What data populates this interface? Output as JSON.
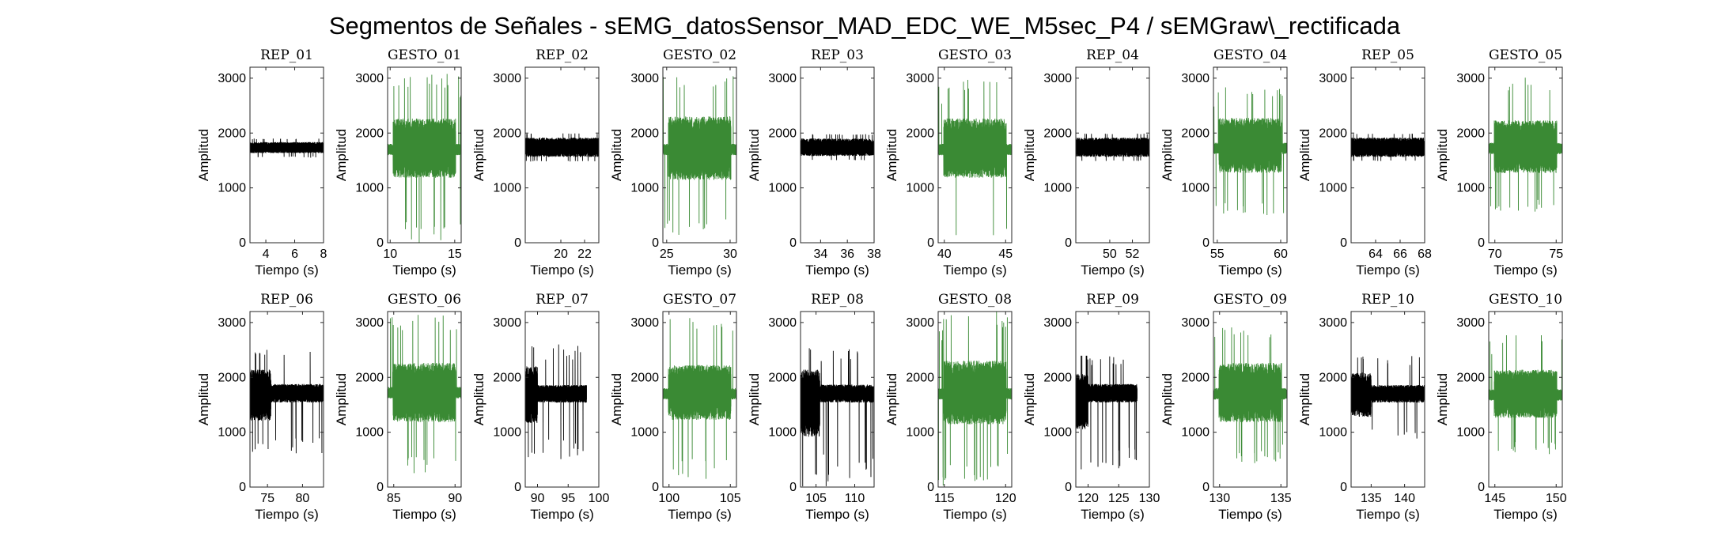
{
  "figure_title": "Segmentos de Señales - sEMG_datosSensor_MAD_EDC_WE_M5sec_P4 / sEMGraw\\_rectificada",
  "colors": {
    "rep": "#000000",
    "gesto": "#3a8a34"
  },
  "chart_data": [
    {
      "type": "line",
      "title": "REP_01",
      "category": "rep",
      "xlim": [
        2.9,
        8
      ],
      "xticks": [
        4,
        6,
        8
      ],
      "ylim": [
        0,
        3200
      ],
      "yticks": [
        0,
        1000,
        2000,
        3000
      ],
      "xlabel": "Tiempo (s)",
      "ylabel": "Amplitud",
      "signal": {
        "center": 1730,
        "band": [
          1610,
          1860
        ],
        "spikes": [
          1550,
          1900
        ]
      }
    },
    {
      "type": "line",
      "title": "GESTO_01",
      "category": "gesto",
      "xlim": [
        9.8,
        15.5
      ],
      "xticks": [
        10,
        15
      ],
      "ylim": [
        0,
        3200
      ],
      "yticks": [
        0,
        1000,
        2000,
        3000
      ],
      "xlabel": "Tiempo (s)",
      "ylabel": "Amplitud",
      "signal": {
        "center": 1700,
        "band": [
          1050,
          2400
        ],
        "spikes": [
          0,
          3100
        ]
      }
    },
    {
      "type": "line",
      "title": "REP_02",
      "category": "rep",
      "xlim": [
        17,
        23.2
      ],
      "xticks": [
        20,
        22
      ],
      "ylim": [
        0,
        3200
      ],
      "yticks": [
        0,
        1000,
        2000,
        3000
      ],
      "xlabel": "Tiempo (s)",
      "ylabel": "Amplitud",
      "signal": {
        "center": 1730,
        "band": [
          1520,
          1960
        ],
        "spikes": [
          1480,
          2000
        ]
      }
    },
    {
      "type": "line",
      "title": "GESTO_02",
      "category": "gesto",
      "xlim": [
        24.7,
        30.5
      ],
      "xticks": [
        25,
        30
      ],
      "ylim": [
        0,
        3200
      ],
      "yticks": [
        0,
        1000,
        2000,
        3000
      ],
      "xlabel": "Tiempo (s)",
      "ylabel": "Amplitud",
      "signal": {
        "center": 1700,
        "band": [
          1000,
          2450
        ],
        "spikes": [
          100,
          3080
        ]
      }
    },
    {
      "type": "line",
      "title": "REP_03",
      "category": "rep",
      "xlim": [
        32.5,
        38
      ],
      "xticks": [
        34,
        36,
        38
      ],
      "ylim": [
        0,
        3200
      ],
      "yticks": [
        0,
        1000,
        2000,
        3000
      ],
      "xlabel": "Tiempo (s)",
      "ylabel": "Amplitud",
      "signal": {
        "center": 1730,
        "band": [
          1540,
          1940
        ],
        "spikes": [
          1500,
          1980
        ]
      }
    },
    {
      "type": "line",
      "title": "GESTO_03",
      "category": "gesto",
      "xlim": [
        39.5,
        45.5
      ],
      "xticks": [
        40,
        45
      ],
      "ylim": [
        0,
        3200
      ],
      "yticks": [
        0,
        1000,
        2000,
        3000
      ],
      "xlabel": "Tiempo (s)",
      "ylabel": "Amplitud",
      "signal": {
        "center": 1700,
        "band": [
          1050,
          2400
        ],
        "spikes": [
          0,
          3000
        ]
      }
    },
    {
      "type": "line",
      "title": "REP_04",
      "category": "rep",
      "xlim": [
        47,
        53.5
      ],
      "xticks": [
        50,
        52
      ],
      "ylim": [
        0,
        3200
      ],
      "yticks": [
        0,
        1000,
        2000,
        3000
      ],
      "xlabel": "Tiempo (s)",
      "ylabel": "Amplitud",
      "signal": {
        "center": 1730,
        "band": [
          1520,
          1960
        ],
        "spikes": [
          1490,
          1990
        ]
      }
    },
    {
      "type": "line",
      "title": "GESTO_04",
      "category": "gesto",
      "xlim": [
        54.7,
        60.5
      ],
      "xticks": [
        55,
        60
      ],
      "ylim": [
        0,
        3200
      ],
      "yticks": [
        0,
        1000,
        2000,
        3000
      ],
      "xlabel": "Tiempo (s)",
      "ylabel": "Amplitud",
      "signal": {
        "center": 1720,
        "band": [
          1150,
          2400
        ],
        "spikes": [
          500,
          2850
        ]
      }
    },
    {
      "type": "line",
      "title": "REP_05",
      "category": "rep",
      "xlim": [
        62,
        68
      ],
      "xticks": [
        64,
        66,
        68
      ],
      "ylim": [
        0,
        3200
      ],
      "yticks": [
        0,
        1000,
        2000,
        3000
      ],
      "xlabel": "Tiempo (s)",
      "ylabel": "Amplitud",
      "signal": {
        "center": 1730,
        "band": [
          1520,
          1960
        ],
        "spikes": [
          1490,
          1990
        ]
      }
    },
    {
      "type": "line",
      "title": "GESTO_05",
      "category": "gesto",
      "xlim": [
        69.5,
        75.5
      ],
      "xticks": [
        70,
        75
      ],
      "ylim": [
        0,
        3200
      ],
      "yticks": [
        0,
        1000,
        2000,
        3000
      ],
      "xlabel": "Tiempo (s)",
      "ylabel": "Amplitud",
      "signal": {
        "center": 1720,
        "band": [
          1150,
          2350
        ],
        "spikes": [
          550,
          3050
        ]
      }
    },
    {
      "type": "line",
      "title": "REP_06",
      "category": "rep",
      "xlim": [
        72.5,
        83
      ],
      "xticks": [
        75,
        80
      ],
      "ylim": [
        0,
        3200
      ],
      "yticks": [
        0,
        1000,
        2000,
        3000
      ],
      "xlabel": "Tiempo (s)",
      "ylabel": "Amplitud",
      "signal": {
        "center": 1700,
        "band": [
          1500,
          1920
        ],
        "spikes": [
          600,
          2500
        ],
        "burst": [
          72.5,
          75.5
        ]
      }
    },
    {
      "type": "line",
      "title": "GESTO_06",
      "category": "gesto",
      "xlim": [
        84.5,
        90.5
      ],
      "xticks": [
        85,
        90
      ],
      "ylim": [
        0,
        3200
      ],
      "yticks": [
        0,
        1000,
        2000,
        3000
      ],
      "xlabel": "Tiempo (s)",
      "ylabel": "Amplitud",
      "signal": {
        "center": 1720,
        "band": [
          1050,
          2400
        ],
        "spikes": [
          250,
          3150
        ]
      }
    },
    {
      "type": "line",
      "title": "REP_07",
      "category": "rep",
      "xlim": [
        88,
        100
      ],
      "xticks": [
        90,
        95,
        100
      ],
      "ylim": [
        0,
        3200
      ],
      "yticks": [
        0,
        1000,
        2000,
        3000
      ],
      "xlabel": "Tiempo (s)",
      "ylabel": "Amplitud",
      "signal": {
        "center": 1700,
        "band": [
          1500,
          1900
        ],
        "spikes": [
          500,
          2600
        ],
        "burst": [
          88,
          90
        ],
        "end": 98
      }
    },
    {
      "type": "line",
      "title": "GESTO_07",
      "category": "gesto",
      "xlim": [
        99.5,
        105.5
      ],
      "xticks": [
        100,
        105
      ],
      "ylim": [
        0,
        3200
      ],
      "yticks": [
        0,
        1000,
        2000,
        3000
      ],
      "xlabel": "Tiempo (s)",
      "ylabel": "Amplitud",
      "signal": {
        "center": 1700,
        "band": [
          1100,
          2350
        ],
        "spikes": [
          150,
          3100
        ]
      }
    },
    {
      "type": "line",
      "title": "REP_08",
      "category": "rep",
      "xlim": [
        103,
        112.5
      ],
      "xticks": [
        105,
        110
      ],
      "ylim": [
        0,
        3200
      ],
      "yticks": [
        0,
        1000,
        2000,
        3000
      ],
      "xlabel": "Tiempo (s)",
      "ylabel": "Amplitud",
      "signal": {
        "center": 1700,
        "band": [
          1500,
          1910
        ],
        "spikes": [
          0,
          2550
        ],
        "burst": [
          103,
          105.5
        ]
      }
    },
    {
      "type": "line",
      "title": "GESTO_08",
      "category": "gesto",
      "xlim": [
        114.5,
        120.5
      ],
      "xticks": [
        115,
        120
      ],
      "ylim": [
        0,
        3200
      ],
      "yticks": [
        0,
        1000,
        2000,
        3000
      ],
      "xlabel": "Tiempo (s)",
      "ylabel": "Amplitud",
      "signal": {
        "center": 1700,
        "band": [
          1000,
          2450
        ],
        "spikes": [
          0,
          3200
        ]
      }
    },
    {
      "type": "line",
      "title": "REP_09",
      "category": "rep",
      "xlim": [
        118,
        130
      ],
      "xticks": [
        120,
        125,
        130
      ],
      "ylim": [
        0,
        3200
      ],
      "yticks": [
        0,
        1000,
        2000,
        3000
      ],
      "xlabel": "Tiempo (s)",
      "ylabel": "Amplitud",
      "signal": {
        "center": 1700,
        "band": [
          1500,
          1920
        ],
        "spikes": [
          300,
          2400
        ],
        "burst": [
          118,
          120
        ],
        "end": 128
      }
    },
    {
      "type": "line",
      "title": "GESTO_09",
      "category": "gesto",
      "xlim": [
        129.5,
        135.5
      ],
      "xticks": [
        130,
        135
      ],
      "ylim": [
        0,
        3200
      ],
      "yticks": [
        0,
        1000,
        2000,
        3000
      ],
      "xlabel": "Tiempo (s)",
      "ylabel": "Amplitud",
      "signal": {
        "center": 1700,
        "band": [
          1050,
          2400
        ],
        "spikes": [
          400,
          2950
        ]
      }
    },
    {
      "type": "line",
      "title": "REP_10",
      "category": "rep",
      "xlim": [
        132,
        143
      ],
      "xticks": [
        135,
        140
      ],
      "ylim": [
        0,
        3200
      ],
      "yticks": [
        0,
        1000,
        2000,
        3000
      ],
      "xlabel": "Tiempo (s)",
      "ylabel": "Amplitud",
      "signal": {
        "center": 1700,
        "band": [
          1500,
          1900
        ],
        "spikes": [
          750,
          2400
        ],
        "burst": [
          132,
          135
        ]
      }
    },
    {
      "type": "line",
      "title": "GESTO_10",
      "category": "gesto",
      "xlim": [
        144.5,
        150.5
      ],
      "xticks": [
        145,
        150
      ],
      "ylim": [
        0,
        3200
      ],
      "yticks": [
        0,
        1000,
        2000,
        3000
      ],
      "xlabel": "Tiempo (s)",
      "ylabel": "Amplitud",
      "signal": {
        "center": 1680,
        "band": [
          1150,
          2250
        ],
        "spikes": [
          600,
          2800
        ]
      }
    }
  ]
}
